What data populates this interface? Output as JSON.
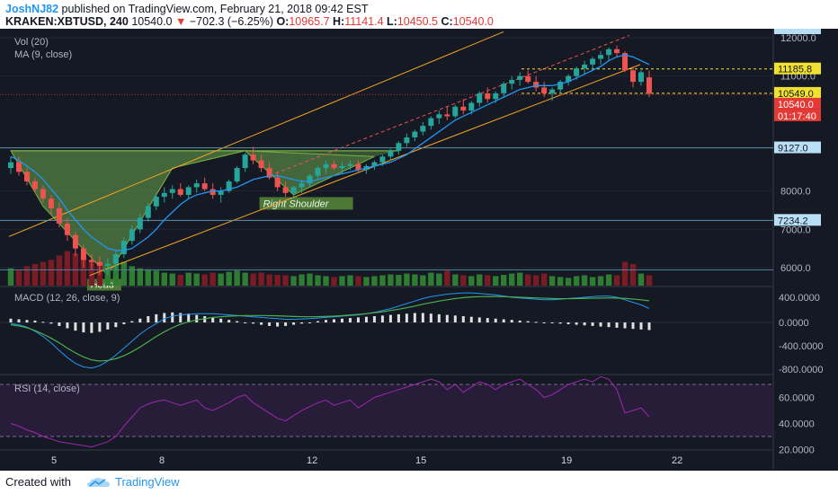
{
  "header": {
    "author": "JoshNJ82",
    "published_text": " published on TradingView.com, February 21, 2018 09:42 EST",
    "symbol": "KRAKEN:XBTUSD, 240",
    "last": "10540.0",
    "change": "−702.3 (−6.25%)",
    "open_label": " O:",
    "open": "10965.7",
    "high_label": " H:",
    "high": "11141.4",
    "low_label": " L:",
    "low": "10450.5",
    "close_label": " C:",
    "close": "10540.0"
  },
  "footer": {
    "created_with": "Created with",
    "brand": "TradingView"
  },
  "colors": {
    "bg": "#151924",
    "up": "#26a69a",
    "down": "#ef5350",
    "vol_up": "#2e7d32",
    "vol_down": "#7b1c24",
    "channel": "#f5a623",
    "ma": "#2196f3",
    "macd": "#2196f3",
    "signal": "#4caf50",
    "rsi": "#9c27b0",
    "pattern_fill": "#6aa84f"
  },
  "chart_data": [
    {
      "type": "candlestick",
      "title": "",
      "price_axis": {
        "ticks": [
          6000,
          7000,
          8000,
          11000,
          12000
        ],
        "range": [
          5500,
          12200
        ]
      },
      "time_axis": {
        "ticks": [
          "5",
          "8",
          "12",
          "15",
          "19",
          "22"
        ]
      },
      "price_tags": [
        {
          "label": "11185.8",
          "value": 11185.8,
          "style": "yellow"
        },
        {
          "label": "10549.0",
          "value": 10549.0,
          "style": "yellow"
        },
        {
          "label": "10540.0",
          "value": 10540.0,
          "style": "red"
        },
        {
          "label": "01:17:40",
          "value": 10200,
          "style": "red"
        },
        {
          "label": "9127.0",
          "value": 9127.0,
          "style": "blue"
        },
        {
          "label": "7234.2",
          "value": 7234.2,
          "style": "blue"
        }
      ],
      "indicators": [
        "Vol (20)",
        "MA (9, close)"
      ],
      "annotations": [
        "Head",
        "Right Shoulder"
      ],
      "ohlc": [
        [
          8600,
          8900,
          8450,
          8750
        ],
        [
          8750,
          8900,
          8400,
          8500
        ],
        [
          8500,
          8600,
          8150,
          8250
        ],
        [
          8250,
          8350,
          7950,
          8050
        ],
        [
          8050,
          8150,
          7700,
          7800
        ],
        [
          7800,
          7900,
          7400,
          7550
        ],
        [
          7550,
          7700,
          7050,
          7150
        ],
        [
          7150,
          7300,
          6700,
          6850
        ],
        [
          6850,
          6950,
          6300,
          6500
        ],
        [
          6500,
          6600,
          6000,
          6200
        ],
        [
          6200,
          6350,
          5950,
          6150
        ],
        [
          6150,
          6300,
          5800,
          6050
        ],
        [
          6050,
          6250,
          5800,
          6100
        ],
        [
          6100,
          6450,
          5950,
          6350
        ],
        [
          6350,
          6800,
          6250,
          6700
        ],
        [
          6700,
          7100,
          6600,
          7000
        ],
        [
          7000,
          7400,
          6900,
          7300
        ],
        [
          7300,
          7700,
          7200,
          7600
        ],
        [
          7600,
          7950,
          7500,
          7850
        ],
        [
          7850,
          8100,
          7700,
          7950
        ],
        [
          7950,
          8150,
          7800,
          8050
        ],
        [
          8050,
          8200,
          7850,
          7900
        ],
        [
          7900,
          8150,
          7800,
          8100
        ],
        [
          8100,
          8300,
          7950,
          8200
        ],
        [
          8200,
          8350,
          8000,
          8050
        ],
        [
          8050,
          8200,
          7800,
          7900
        ],
        [
          7900,
          8100,
          7700,
          8000
        ],
        [
          8000,
          8300,
          7950,
          8250
        ],
        [
          8250,
          8650,
          8200,
          8600
        ],
        [
          8600,
          9000,
          8500,
          8950
        ],
        [
          8950,
          9150,
          8700,
          8800
        ],
        [
          8800,
          8950,
          8500,
          8600
        ],
        [
          8600,
          8750,
          8300,
          8350
        ],
        [
          8350,
          8500,
          8000,
          8100
        ],
        [
          8100,
          8250,
          7850,
          7950
        ],
        [
          7950,
          8150,
          7800,
          8100
        ],
        [
          8100,
          8300,
          7950,
          8200
        ],
        [
          8200,
          8450,
          8100,
          8400
        ],
        [
          8400,
          8650,
          8300,
          8600
        ],
        [
          8600,
          8800,
          8450,
          8700
        ],
        [
          8700,
          8800,
          8550,
          8600
        ],
        [
          8600,
          8750,
          8450,
          8650
        ],
        [
          8650,
          8800,
          8550,
          8700
        ],
        [
          8700,
          8800,
          8500,
          8550
        ],
        [
          8550,
          8700,
          8450,
          8650
        ],
        [
          8650,
          8800,
          8550,
          8750
        ],
        [
          8750,
          8950,
          8650,
          8900
        ],
        [
          8900,
          9100,
          8800,
          9050
        ],
        [
          9050,
          9300,
          8950,
          9250
        ],
        [
          9250,
          9500,
          9150,
          9400
        ],
        [
          9400,
          9600,
          9300,
          9550
        ],
        [
          9550,
          9800,
          9450,
          9700
        ],
        [
          9700,
          9950,
          9600,
          9900
        ],
        [
          9900,
          10100,
          9750,
          10000
        ],
        [
          10000,
          10200,
          9850,
          9950
        ],
        [
          9950,
          10250,
          9900,
          10200
        ],
        [
          10200,
          10400,
          10000,
          10100
        ],
        [
          10100,
          10350,
          10000,
          10300
        ],
        [
          10300,
          10600,
          10200,
          10550
        ],
        [
          10550,
          10700,
          10300,
          10400
        ],
        [
          10400,
          10600,
          10300,
          10550
        ],
        [
          10550,
          10850,
          10450,
          10800
        ],
        [
          10800,
          11000,
          10650,
          10900
        ],
        [
          10900,
          11100,
          10750,
          11000
        ],
        [
          11000,
          11150,
          10800,
          10850
        ],
        [
          10850,
          11000,
          10600,
          10700
        ],
        [
          10700,
          10850,
          10450,
          10550
        ],
        [
          10550,
          10700,
          10350,
          10650
        ],
        [
          10650,
          10900,
          10550,
          10850
        ],
        [
          10850,
          11050,
          10750,
          11000
        ],
        [
          11000,
          11250,
          10900,
          11200
        ],
        [
          11200,
          11400,
          11050,
          11300
        ],
        [
          11300,
          11500,
          11150,
          11450
        ],
        [
          11450,
          11650,
          11300,
          11550
        ],
        [
          11550,
          11750,
          11400,
          11700
        ],
        [
          11700,
          11800,
          11500,
          11600
        ],
        [
          11600,
          11650,
          11100,
          11150
        ],
        [
          11150,
          11250,
          10700,
          10850
        ],
        [
          10850,
          11150,
          10750,
          11100
        ],
        [
          10965.7,
          11141.4,
          10450.5,
          10540
        ]
      ],
      "volume": [
        40,
        35,
        45,
        50,
        55,
        60,
        70,
        80,
        75,
        65,
        60,
        55,
        50,
        60,
        55,
        45,
        40,
        38,
        35,
        30,
        28,
        25,
        30,
        28,
        26,
        30,
        28,
        32,
        35,
        30,
        28,
        30,
        26,
        25,
        24,
        22,
        26,
        28,
        24,
        22,
        20,
        22,
        24,
        22,
        20,
        22,
        24,
        26,
        25,
        28,
        26,
        24,
        30,
        28,
        35,
        26,
        24,
        22,
        26,
        24,
        22,
        25,
        28,
        30,
        26,
        24,
        28,
        22,
        20,
        18,
        22,
        24,
        20,
        22,
        26,
        24,
        55,
        50,
        28,
        24
      ],
      "ma": [
        8900,
        8800,
        8650,
        8500,
        8300,
        8050,
        7800,
        7500,
        7250,
        7000,
        6800,
        6650,
        6500,
        6450,
        6450,
        6500,
        6650,
        6800,
        7000,
        7250,
        7450,
        7650,
        7800,
        7900,
        7950,
        8000,
        8000,
        8050,
        8100,
        8200,
        8300,
        8350,
        8400,
        8400,
        8350,
        8300,
        8250,
        8250,
        8300,
        8350,
        8400,
        8450,
        8500,
        8550,
        8600,
        8650,
        8700,
        8750,
        8850,
        8950,
        9100,
        9250,
        9400,
        9550,
        9700,
        9850,
        9950,
        10050,
        10150,
        10250,
        10350,
        10450,
        10550,
        10650,
        10700,
        10750,
        10750,
        10750,
        10800,
        10850,
        10950,
        11050,
        11150,
        11250,
        11400,
        11500,
        11550,
        11500,
        11400,
        11300
      ]
    },
    {
      "type": "bar",
      "title": "MACD (12, 26, close, 9)",
      "y_axis": {
        "ticks": [
          "400.0000",
          "0.0000",
          "-400.0000",
          "-800.0000"
        ],
        "range": [
          -880,
          600
        ]
      },
      "histogram": [
        60,
        50,
        40,
        30,
        10,
        -20,
        -60,
        -100,
        -140,
        -170,
        -180,
        -160,
        -120,
        -80,
        -30,
        20,
        60,
        100,
        130,
        150,
        160,
        150,
        140,
        120,
        100,
        80,
        60,
        40,
        20,
        0,
        -20,
        -40,
        -60,
        -70,
        -60,
        -40,
        -20,
        0,
        20,
        40,
        50,
        60,
        70,
        80,
        90,
        100,
        110,
        120,
        130,
        140,
        150,
        150,
        140,
        130,
        120,
        110,
        100,
        90,
        80,
        70,
        60,
        50,
        40,
        30,
        20,
        10,
        0,
        -10,
        -20,
        -30,
        -40,
        -50,
        -60,
        -70,
        -80,
        -90,
        -100,
        -110,
        -120,
        -130
      ],
      "macd": [
        -20,
        -40,
        -80,
        -150,
        -240,
        -350,
        -480,
        -600,
        -700,
        -760,
        -780,
        -740,
        -660,
        -560,
        -440,
        -320,
        -200,
        -100,
        -20,
        60,
        100,
        120,
        130,
        140,
        140,
        140,
        130,
        120,
        110,
        100,
        90,
        80,
        70,
        60,
        50,
        50,
        55,
        60,
        70,
        80,
        90,
        100,
        110,
        120,
        140,
        160,
        190,
        220,
        260,
        300,
        340,
        380,
        410,
        430,
        450,
        460,
        470,
        470,
        460,
        450,
        440,
        420,
        400,
        390,
        380,
        370,
        360,
        360,
        370,
        380,
        390,
        400,
        410,
        420,
        420,
        400,
        360,
        320,
        280,
        220
      ],
      "signal": [
        -40,
        -60,
        -90,
        -140,
        -200,
        -270,
        -350,
        -440,
        -520,
        -590,
        -640,
        -660,
        -650,
        -620,
        -570,
        -500,
        -420,
        -330,
        -240,
        -160,
        -90,
        -30,
        10,
        40,
        60,
        80,
        90,
        100,
        105,
        110,
        110,
        110,
        108,
        105,
        100,
        95,
        92,
        90,
        92,
        96,
        100,
        108,
        118,
        128,
        140,
        155,
        170,
        190,
        210,
        235,
        260,
        290,
        315,
        340,
        360,
        380,
        395,
        405,
        410,
        412,
        412,
        410,
        405,
        400,
        395,
        390,
        385,
        380,
        378,
        378,
        380,
        382,
        385,
        388,
        390,
        388,
        382,
        372,
        360,
        345
      ]
    },
    {
      "type": "line",
      "title": "RSI (14, close)",
      "y_axis": {
        "ticks": [
          "60.0000",
          "40.0000",
          "20.0000"
        ],
        "range": [
          15,
          80
        ],
        "bands": [
          70,
          30
        ]
      },
      "values": [
        40,
        38,
        35,
        33,
        30,
        28,
        26,
        25,
        24,
        23,
        22,
        24,
        26,
        30,
        38,
        45,
        52,
        55,
        57,
        58,
        56,
        54,
        56,
        58,
        52,
        50,
        53,
        56,
        60,
        62,
        56,
        52,
        48,
        44,
        42,
        46,
        50,
        53,
        56,
        58,
        54,
        56,
        58,
        52,
        56,
        60,
        62,
        64,
        66,
        68,
        70,
        72,
        74,
        72,
        66,
        70,
        64,
        68,
        72,
        70,
        66,
        70,
        72,
        74,
        70,
        66,
        60,
        62,
        66,
        70,
        72,
        74,
        72,
        76,
        74,
        66,
        48,
        50,
        52,
        45
      ]
    }
  ]
}
